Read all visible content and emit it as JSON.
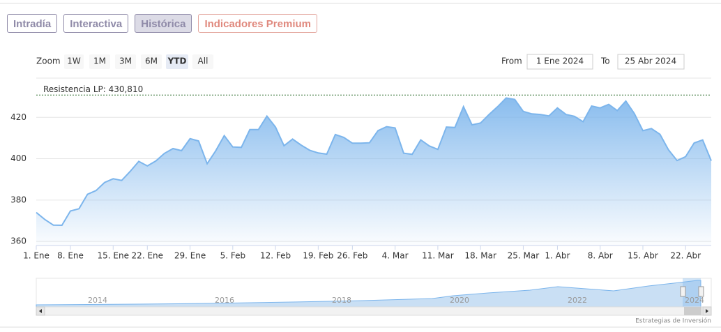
{
  "tabs": [
    "Intradía",
    "Interactiva",
    "Histórica",
    "Indicadores Premium"
  ],
  "zoom": {
    "label": "Zoom",
    "buttons": [
      "1W",
      "1M",
      "3M",
      "6M",
      "YTD",
      "All"
    ]
  },
  "range": {
    "from_label": "From",
    "from": "1 Ene 2024",
    "to_label": "To",
    "to": "25 Abr 2024"
  },
  "chart_data": {
    "type": "area",
    "x": [
      "2024-01-02",
      "2024-01-03",
      "2024-01-04",
      "2024-01-05",
      "2024-01-08",
      "2024-01-09",
      "2024-01-10",
      "2024-01-11",
      "2024-01-12",
      "2024-01-16",
      "2024-01-17",
      "2024-01-18",
      "2024-01-19",
      "2024-01-22",
      "2024-01-23",
      "2024-01-24",
      "2024-01-25",
      "2024-01-26",
      "2024-01-29",
      "2024-01-30",
      "2024-01-31",
      "2024-02-01",
      "2024-02-02",
      "2024-02-05",
      "2024-02-06",
      "2024-02-07",
      "2024-02-08",
      "2024-02-09",
      "2024-02-12",
      "2024-02-13",
      "2024-02-14",
      "2024-02-15",
      "2024-02-16",
      "2024-02-20",
      "2024-02-21",
      "2024-02-22",
      "2024-02-23",
      "2024-02-26",
      "2024-02-27",
      "2024-02-28",
      "2024-02-29",
      "2024-03-01",
      "2024-03-04",
      "2024-03-05",
      "2024-03-06",
      "2024-03-07",
      "2024-03-08",
      "2024-03-11",
      "2024-03-12",
      "2024-03-13",
      "2024-03-14",
      "2024-03-15",
      "2024-03-18",
      "2024-03-19",
      "2024-03-20",
      "2024-03-21",
      "2024-03-22",
      "2024-03-25",
      "2024-03-26",
      "2024-03-27",
      "2024-03-28",
      "2024-04-01",
      "2024-04-02",
      "2024-04-03",
      "2024-04-04",
      "2024-04-05",
      "2024-04-08",
      "2024-04-09",
      "2024-04-10",
      "2024-04-11",
      "2024-04-12",
      "2024-04-15",
      "2024-04-16",
      "2024-04-17",
      "2024-04-18",
      "2024-04-19",
      "2024-04-22",
      "2024-04-23",
      "2024-04-24",
      "2024-04-25"
    ],
    "values": [
      374,
      370.6,
      367.9,
      367.8,
      374.7,
      375.8,
      382.8,
      384.6,
      388.5,
      390.3,
      389.5,
      393.9,
      398.7,
      396.5,
      398.9,
      402.6,
      404.9,
      403.9,
      409.7,
      408.6,
      397.6,
      403.8,
      411.2,
      405.7,
      405.5,
      414.1,
      414.1,
      420.6,
      415.3,
      406.3,
      409.5,
      406.6,
      404.1,
      402.8,
      402.2,
      411.7,
      410.3,
      407.5,
      407.5,
      407.7,
      413.6,
      415.5,
      414.9,
      402.7,
      402.1,
      409.1,
      406.2,
      404.5,
      415.3,
      415.1,
      425.2,
      416.4,
      417.3,
      421.4,
      425.2,
      429.4,
      428.7,
      422.9,
      421.7,
      421.4,
      420.7,
      424.6,
      421.4,
      420.5,
      417.9,
      425.5,
      424.6,
      426.3,
      423.3,
      427.9,
      421.9,
      413.6,
      414.6,
      411.8,
      404.3,
      399.1,
      401.0,
      407.6,
      409.1,
      399.0
    ],
    "color": "#7cb5ec",
    "ylim": [
      358,
      439
    ],
    "yticks": [
      360,
      380,
      400,
      420
    ],
    "grid": true,
    "xticks": [
      {
        "value": "2024-01-01",
        "label": "1. Ene"
      },
      {
        "value": "2024-01-08",
        "label": "8. Ene"
      },
      {
        "value": "2024-01-15",
        "label": "15. Ene"
      },
      {
        "value": "2024-01-22",
        "label": "22. Ene"
      },
      {
        "value": "2024-01-29",
        "label": "29. Ene"
      },
      {
        "value": "2024-02-05",
        "label": "5. Feb"
      },
      {
        "value": "2024-02-12",
        "label": "12. Feb"
      },
      {
        "value": "2024-02-19",
        "label": "19. Feb"
      },
      {
        "value": "2024-02-26",
        "label": "26. Feb"
      },
      {
        "value": "2024-03-04",
        "label": "4. Mar"
      },
      {
        "value": "2024-03-11",
        "label": "11. Mar"
      },
      {
        "value": "2024-03-18",
        "label": "18. Mar"
      },
      {
        "value": "2024-03-25",
        "label": "25. Mar"
      },
      {
        "value": "2024-04-01",
        "label": "1. Abr"
      },
      {
        "value": "2024-04-08",
        "label": "8. Abr"
      },
      {
        "value": "2024-04-15",
        "label": "15. Abr"
      },
      {
        "value": "2024-04-22",
        "label": "22. Abr"
      }
    ],
    "annotations": [
      {
        "value": 430.81,
        "label": "Resistencia LP: 430,810"
      }
    ]
  },
  "navigator": {
    "labels": [
      "2014",
      "2016",
      "2018",
      "2020",
      "2022",
      "2024"
    ]
  },
  "credit": "Estrategias de Inversión"
}
